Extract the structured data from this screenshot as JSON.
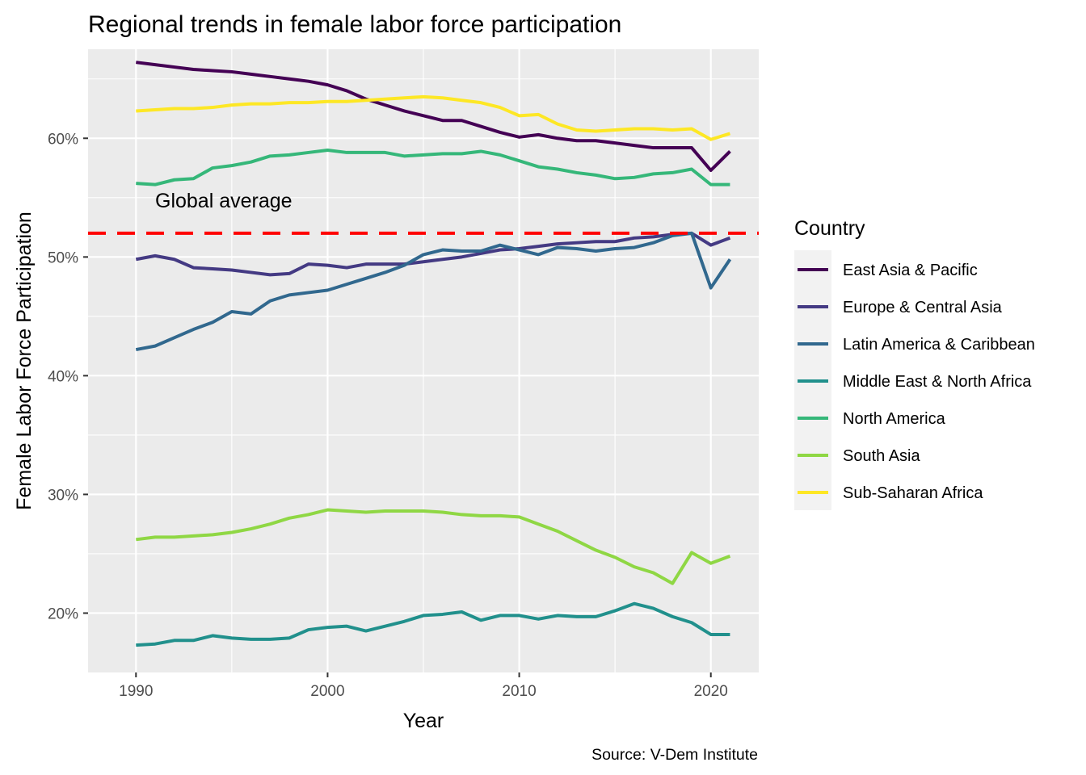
{
  "chart_data": {
    "type": "line",
    "title": "Regional trends in female labor force participation",
    "xlabel": "Year",
    "ylabel": "Female Labor Force Participation",
    "caption": "Source: V-Dem Institute",
    "legend_title": "Country",
    "legend_position": "right",
    "grid": true,
    "xlim": [
      1987.5,
      2022.5
    ],
    "ylim": [
      15,
      67.5
    ],
    "x_ticks": [
      1990,
      2000,
      2010,
      2020
    ],
    "x_tick_labels": [
      "1990",
      "2000",
      "2010",
      "2020"
    ],
    "y_ticks": [
      20,
      30,
      40,
      50,
      60
    ],
    "y_tick_labels": [
      "20%",
      "30%",
      "40%",
      "50%",
      "60%"
    ],
    "x": [
      1990,
      1991,
      1992,
      1993,
      1994,
      1995,
      1996,
      1997,
      1998,
      1999,
      2000,
      2001,
      2002,
      2003,
      2004,
      2005,
      2006,
      2007,
      2008,
      2009,
      2010,
      2011,
      2012,
      2013,
      2014,
      2015,
      2016,
      2017,
      2018,
      2019,
      2020,
      2021
    ],
    "reference_line": {
      "y": 52,
      "label": "Global average",
      "color": "#ff0000",
      "label_x": 1991,
      "label_y": 54.8
    },
    "series": [
      {
        "name": "East Asia & Pacific",
        "color": "#440154",
        "values": [
          66.4,
          66.2,
          66.0,
          65.8,
          65.7,
          65.6,
          65.4,
          65.2,
          65.0,
          64.8,
          64.5,
          64.0,
          63.3,
          62.8,
          62.3,
          61.9,
          61.5,
          61.5,
          61.0,
          60.5,
          60.1,
          60.3,
          60.0,
          59.8,
          59.8,
          59.6,
          59.4,
          59.2,
          59.2,
          59.2,
          57.3,
          58.9
        ]
      },
      {
        "name": "Europe & Central Asia",
        "color": "#443A83",
        "values": [
          49.8,
          50.1,
          49.8,
          49.1,
          49.0,
          48.9,
          48.7,
          48.5,
          48.6,
          49.4,
          49.3,
          49.1,
          49.4,
          49.4,
          49.4,
          49.6,
          49.8,
          50.0,
          50.3,
          50.6,
          50.7,
          50.9,
          51.1,
          51.2,
          51.3,
          51.3,
          51.6,
          51.7,
          51.9,
          52.0,
          51.0,
          51.6
        ]
      },
      {
        "name": "Latin America & Caribbean",
        "color": "#31688E",
        "values": [
          42.2,
          42.5,
          43.2,
          43.9,
          44.5,
          45.4,
          45.2,
          46.3,
          46.8,
          47.0,
          47.2,
          47.7,
          48.2,
          48.7,
          49.3,
          50.2,
          50.6,
          50.5,
          50.5,
          51.0,
          50.6,
          50.2,
          50.8,
          50.7,
          50.5,
          50.7,
          50.8,
          51.2,
          51.8,
          52.0,
          47.4,
          49.8
        ]
      },
      {
        "name": "Middle East & North Africa",
        "color": "#21908C",
        "values": [
          17.3,
          17.4,
          17.7,
          17.7,
          18.1,
          17.9,
          17.8,
          17.8,
          17.9,
          18.6,
          18.8,
          18.9,
          18.5,
          18.9,
          19.3,
          19.8,
          19.9,
          20.1,
          19.4,
          19.8,
          19.8,
          19.5,
          19.8,
          19.7,
          19.7,
          20.2,
          20.8,
          20.4,
          19.7,
          19.2,
          18.2,
          18.2
        ]
      },
      {
        "name": "North America",
        "color": "#35B779",
        "values": [
          56.2,
          56.1,
          56.5,
          56.6,
          57.5,
          57.7,
          58.0,
          58.5,
          58.6,
          58.8,
          59.0,
          58.8,
          58.8,
          58.8,
          58.5,
          58.6,
          58.7,
          58.7,
          58.9,
          58.6,
          58.1,
          57.6,
          57.4,
          57.1,
          56.9,
          56.6,
          56.7,
          57.0,
          57.1,
          57.4,
          56.1,
          56.1
        ]
      },
      {
        "name": "South Asia",
        "color": "#8FD744",
        "values": [
          26.2,
          26.4,
          26.4,
          26.5,
          26.6,
          26.8,
          27.1,
          27.5,
          28.0,
          28.3,
          28.7,
          28.6,
          28.5,
          28.6,
          28.6,
          28.6,
          28.5,
          28.3,
          28.2,
          28.2,
          28.1,
          27.5,
          26.9,
          26.1,
          25.3,
          24.7,
          23.9,
          23.4,
          22.5,
          25.1,
          24.2,
          24.8
        ]
      },
      {
        "name": "Sub-Saharan Africa",
        "color": "#FDE725",
        "values": [
          62.3,
          62.4,
          62.5,
          62.5,
          62.6,
          62.8,
          62.9,
          62.9,
          63.0,
          63.0,
          63.1,
          63.1,
          63.2,
          63.3,
          63.4,
          63.5,
          63.4,
          63.2,
          63.0,
          62.6,
          61.9,
          62.0,
          61.2,
          60.7,
          60.6,
          60.7,
          60.8,
          60.8,
          60.7,
          60.8,
          59.9,
          60.4
        ]
      }
    ]
  }
}
